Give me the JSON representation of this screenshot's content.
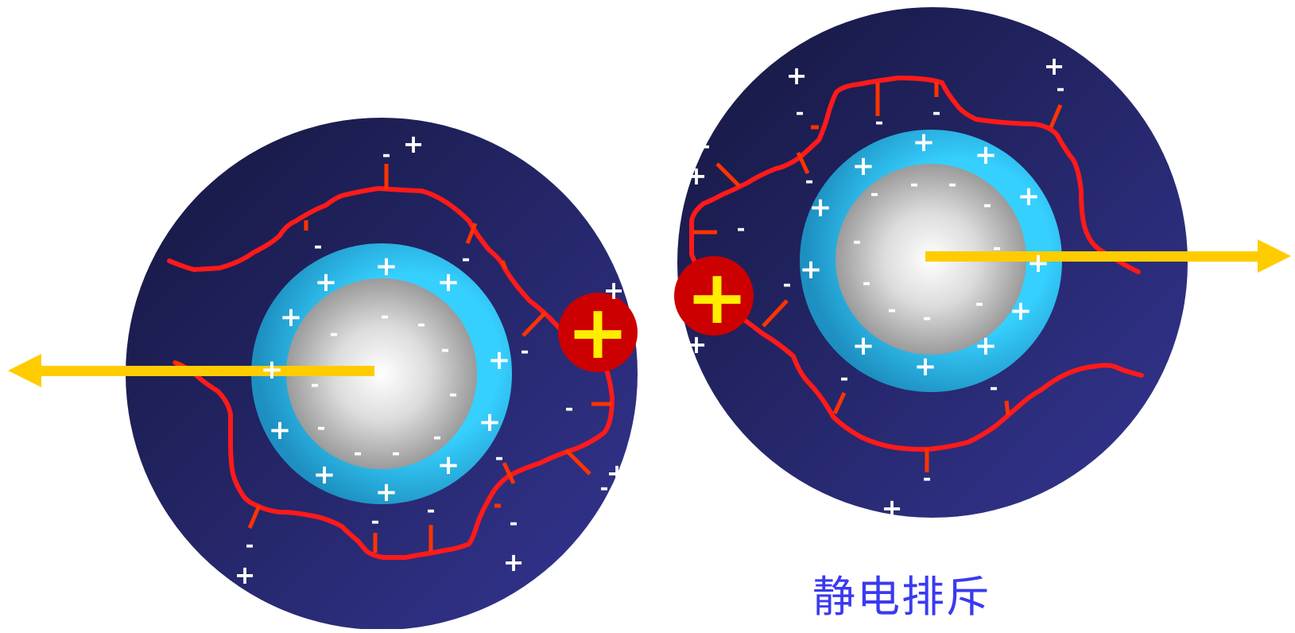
{
  "caption": "静电排斥",
  "colors": {
    "outer_layer": "#1e2060",
    "shell": "#33ccff",
    "core": "#a9a9a9",
    "polymer_chain": "#ff1a1a",
    "counter_ion": "#cc0000",
    "arrow": "#ffcc00",
    "caption": "#3a3af0"
  },
  "symbols": {
    "plus": "+",
    "minus": "-"
  }
}
